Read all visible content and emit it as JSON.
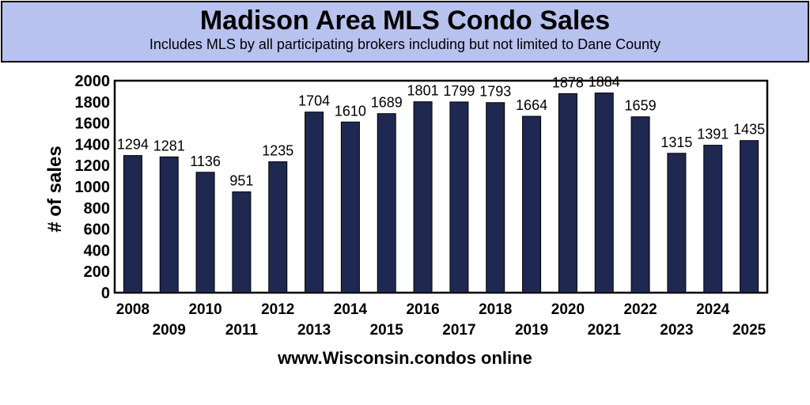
{
  "chart_data": {
    "type": "bar",
    "title": "Madison Area MLS Condo Sales",
    "subtitle": "Includes MLS by all participating brokers including but not limited to Dane County",
    "ylabel": "# of sales",
    "xlabel": "www.Wisconsin.condos online",
    "ylim": [
      0,
      2000
    ],
    "yticks": [
      0,
      200,
      400,
      600,
      800,
      1000,
      1200,
      1400,
      1600,
      1800,
      2000
    ],
    "grid": false,
    "categories": [
      "2008",
      "2009",
      "2010",
      "2011",
      "2012",
      "2013",
      "2014",
      "2015",
      "2016",
      "2017",
      "2018",
      "2019",
      "2020",
      "2021",
      "2022",
      "2023",
      "2024",
      "2025"
    ],
    "values": [
      1294,
      1281,
      1136,
      951,
      1235,
      1704,
      1610,
      1689,
      1801,
      1799,
      1793,
      1664,
      1878,
      1884,
      1659,
      1315,
      1391,
      1435
    ],
    "colors": {
      "bar": "#1f2850",
      "header": "#b8c2ee"
    }
  }
}
